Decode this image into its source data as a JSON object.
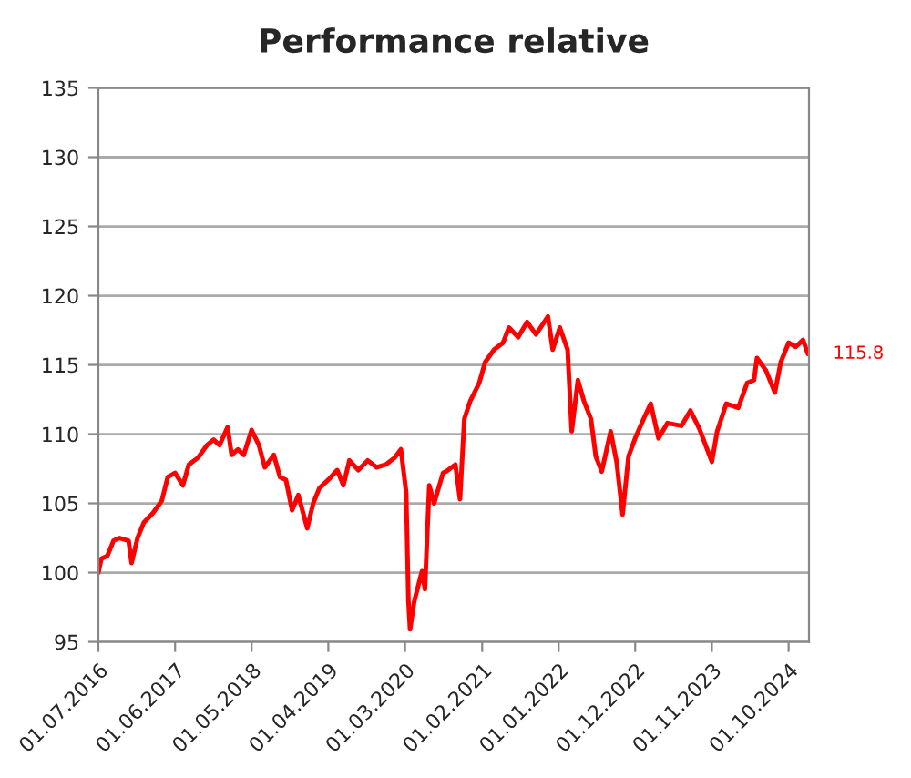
{
  "chart_data": {
    "type": "line",
    "title": "Performance relative",
    "xlim": [
      "2016-07-01",
      "2024-12-29"
    ],
    "xticks": [
      {
        "value": "2016-07-01",
        "label": "01.07.2016"
      },
      {
        "value": "2017-06-01",
        "label": "01.06.2017"
      },
      {
        "value": "2018-05-01",
        "label": "01.05.2018"
      },
      {
        "value": "2019-04-01",
        "label": "01.04.2019"
      },
      {
        "value": "2020-03-01",
        "label": "01.03.2020"
      },
      {
        "value": "2021-02-01",
        "label": "01.02.2021"
      },
      {
        "value": "2022-01-01",
        "label": "01.01.2022"
      },
      {
        "value": "2022-12-01",
        "label": "01.12.2022"
      },
      {
        "value": "2023-11-01",
        "label": "01.11.2023"
      },
      {
        "value": "2024-10-01",
        "label": "01.10.2024"
      }
    ],
    "ylim": [
      95,
      135
    ],
    "yticks": [
      95,
      100,
      105,
      110,
      115,
      120,
      125,
      130,
      135
    ],
    "grid": "y",
    "marker": "none",
    "line_style": "solid",
    "annotations": [
      {
        "text": "115.8",
        "x": "2024-12-24",
        "y": 115.8
      }
    ],
    "series": [
      {
        "color": "#ff0000",
        "x": [
          "2016-07-01",
          "2016-07-14",
          "2016-08-09",
          "2016-09-05",
          "2016-10-01",
          "2016-11-10",
          "2016-11-23",
          "2016-12-19",
          "2017-01-15",
          "2017-02-24",
          "2017-04-04",
          "2017-04-30",
          "2017-06-01",
          "2017-07-05",
          "2017-07-31",
          "2017-09-09",
          "2017-10-18",
          "2017-11-16",
          "2017-12-12",
          "2018-01-16",
          "2018-02-03",
          "2018-03-02",
          "2018-03-28",
          "2018-05-01",
          "2018-06-02",
          "2018-06-28",
          "2018-08-06",
          "2018-09-02",
          "2018-09-28",
          "2018-10-25",
          "2018-11-21",
          "2018-12-30",
          "2019-01-25",
          "2019-02-21",
          "2019-04-01",
          "2019-05-10",
          "2019-06-06",
          "2019-07-02",
          "2019-08-10",
          "2019-09-20",
          "2019-10-29",
          "2019-12-08",
          "2020-01-16",
          "2020-02-12",
          "2020-03-06",
          "2020-03-16",
          "2020-03-23",
          "2020-04-10",
          "2020-05-14",
          "2020-05-27",
          "2020-06-15",
          "2020-07-06",
          "2020-08-14",
          "2020-08-28",
          "2020-10-07",
          "2020-10-27",
          "2020-11-15",
          "2020-12-11",
          "2021-01-19",
          "2021-02-14",
          "2021-03-25",
          "2021-05-03",
          "2021-05-29",
          "2021-07-08",
          "2021-08-16",
          "2021-09-24",
          "2021-11-15",
          "2021-12-06",
          "2022-01-06",
          "2022-02-09",
          "2022-02-27",
          "2022-03-26",
          "2022-04-21",
          "2022-05-22",
          "2022-06-12",
          "2022-07-08",
          "2022-08-16",
          "2022-09-11",
          "2022-10-07",
          "2022-11-02",
          "2022-12-01",
          "2023-01-07",
          "2023-02-07",
          "2023-03-13",
          "2023-04-21",
          "2023-06-21",
          "2023-07-30",
          "2023-09-07",
          "2023-11-01",
          "2023-11-24",
          "2024-01-03",
          "2024-02-24",
          "2024-04-03",
          "2024-05-03",
          "2024-05-16",
          "2024-06-24",
          "2024-08-02",
          "2024-08-28",
          "2024-10-01",
          "2024-11-01",
          "2024-12-03",
          "2024-12-24"
        ],
        "values": [
          100.0,
          101.0,
          101.2,
          102.3,
          102.5,
          102.3,
          100.7,
          102.5,
          103.6,
          104.3,
          105.2,
          106.9,
          107.2,
          106.3,
          107.8,
          108.3,
          109.2,
          109.6,
          109.2,
          110.5,
          108.5,
          108.9,
          108.5,
          110.3,
          109.2,
          107.6,
          108.5,
          106.9,
          106.7,
          104.5,
          105.6,
          103.2,
          105.0,
          106.1,
          106.7,
          107.4,
          106.3,
          108.1,
          107.4,
          108.1,
          107.6,
          107.8,
          108.3,
          108.9,
          105.8,
          97.9,
          95.9,
          97.9,
          100.1,
          98.8,
          106.3,
          105.0,
          107.2,
          107.3,
          107.8,
          105.3,
          111.1,
          112.4,
          113.7,
          115.2,
          116.1,
          116.6,
          117.7,
          117.0,
          118.1,
          117.2,
          118.5,
          116.1,
          117.7,
          116.1,
          110.2,
          113.9,
          112.4,
          111.1,
          108.4,
          107.3,
          110.2,
          108.0,
          104.2,
          108.4,
          109.7,
          111.1,
          112.2,
          109.7,
          110.8,
          110.6,
          111.7,
          110.4,
          108.0,
          110.2,
          112.2,
          111.9,
          113.7,
          113.9,
          115.5,
          114.6,
          113.0,
          115.2,
          116.6,
          116.3,
          116.8,
          115.8
        ]
      }
    ]
  }
}
